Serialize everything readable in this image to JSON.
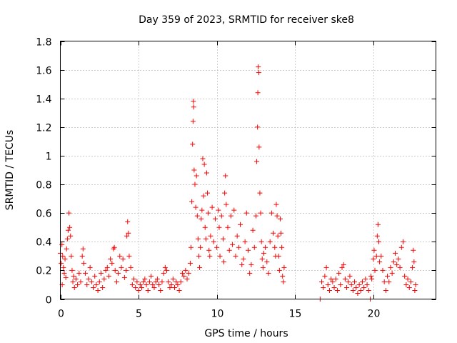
{
  "chart_data": {
    "type": "scatter",
    "title": "Day 359 of 2023, SRMTID for receiver ske8",
    "xlabel": "GPS time / hours",
    "ylabel": "SRMTID / TECUs",
    "xlim": [
      0,
      24
    ],
    "ylim": [
      0,
      1.8
    ],
    "x_ticks": [
      0,
      5,
      10,
      15,
      20
    ],
    "y_ticks": [
      0,
      0.2,
      0.4,
      0.6,
      0.8,
      1,
      1.2,
      1.4,
      1.6,
      1.8
    ],
    "x_tick_labels": [
      "0",
      "5",
      "10",
      "15",
      "20"
    ],
    "y_tick_labels": [
      "0",
      "0.2",
      "0.4",
      "0.6",
      "0.8",
      "1",
      "1.2",
      "1.4",
      "1.6",
      "1.8"
    ],
    "grid": true,
    "marker": "plus",
    "color": "#ff0000",
    "series": [
      {
        "name": "SRMTID",
        "points": [
          [
            0.0,
            0.32
          ],
          [
            0.05,
            0.25
          ],
          [
            0.1,
            0.38
          ],
          [
            0.12,
            0.1
          ],
          [
            0.15,
            0.3
          ],
          [
            0.2,
            0.22
          ],
          [
            0.25,
            0.18
          ],
          [
            0.3,
            0.28
          ],
          [
            0.35,
            0.15
          ],
          [
            0.4,
            0.35
          ],
          [
            0.45,
            0.42
          ],
          [
            0.5,
            0.48
          ],
          [
            0.55,
            0.6
          ],
          [
            0.6,
            0.5
          ],
          [
            0.65,
            0.44
          ],
          [
            0.7,
            0.3
          ],
          [
            0.75,
            0.2
          ],
          [
            0.8,
            0.12
          ],
          [
            0.85,
            0.16
          ],
          [
            0.9,
            0.08
          ],
          [
            1.0,
            0.14
          ],
          [
            1.1,
            0.1
          ],
          [
            1.2,
            0.18
          ],
          [
            1.3,
            0.12
          ],
          [
            1.4,
            0.3
          ],
          [
            1.45,
            0.35
          ],
          [
            1.5,
            0.25
          ],
          [
            1.6,
            0.18
          ],
          [
            1.7,
            0.1
          ],
          [
            1.8,
            0.14
          ],
          [
            1.9,
            0.22
          ],
          [
            2.0,
            0.12
          ],
          [
            2.1,
            0.08
          ],
          [
            2.2,
            0.16
          ],
          [
            2.3,
            0.1
          ],
          [
            2.4,
            0.06
          ],
          [
            2.5,
            0.12
          ],
          [
            2.6,
            0.18
          ],
          [
            2.7,
            0.08
          ],
          [
            2.8,
            0.14
          ],
          [
            2.9,
            0.2
          ],
          [
            3.0,
            0.22
          ],
          [
            3.1,
            0.16
          ],
          [
            3.2,
            0.28
          ],
          [
            3.3,
            0.25
          ],
          [
            3.4,
            0.35
          ],
          [
            3.45,
            0.36
          ],
          [
            3.5,
            0.2
          ],
          [
            3.6,
            0.12
          ],
          [
            3.7,
            0.18
          ],
          [
            3.8,
            0.3
          ],
          [
            3.9,
            0.22
          ],
          [
            4.0,
            0.28
          ],
          [
            4.1,
            0.15
          ],
          [
            4.2,
            0.2
          ],
          [
            4.25,
            0.44
          ],
          [
            4.3,
            0.54
          ],
          [
            4.35,
            0.46
          ],
          [
            4.4,
            0.3
          ],
          [
            4.5,
            0.22
          ],
          [
            4.6,
            0.1
          ],
          [
            4.7,
            0.14
          ],
          [
            4.8,
            0.08
          ],
          [
            4.9,
            0.12
          ],
          [
            5.0,
            0.06
          ],
          [
            5.1,
            0.1
          ],
          [
            5.2,
            0.08
          ],
          [
            5.3,
            0.12
          ],
          [
            5.4,
            0.14
          ],
          [
            5.5,
            0.1
          ],
          [
            5.6,
            0.06
          ],
          [
            5.7,
            0.12
          ],
          [
            5.8,
            0.16
          ],
          [
            5.9,
            0.1
          ],
          [
            6.0,
            0.08
          ],
          [
            6.1,
            0.12
          ],
          [
            6.2,
            0.14
          ],
          [
            6.3,
            0.1
          ],
          [
            6.4,
            0.06
          ],
          [
            6.5,
            0.12
          ],
          [
            6.6,
            0.18
          ],
          [
            6.7,
            0.22
          ],
          [
            6.8,
            0.2
          ],
          [
            6.9,
            0.12
          ],
          [
            7.0,
            0.08
          ],
          [
            7.1,
            0.1
          ],
          [
            7.2,
            0.14
          ],
          [
            7.3,
            0.08
          ],
          [
            7.4,
            0.12
          ],
          [
            7.5,
            0.1
          ],
          [
            7.6,
            0.06
          ],
          [
            7.7,
            0.12
          ],
          [
            7.8,
            0.18
          ],
          [
            7.9,
            0.16
          ],
          [
            8.0,
            0.2
          ],
          [
            8.1,
            0.14
          ],
          [
            8.2,
            0.18
          ],
          [
            8.3,
            0.25
          ],
          [
            8.35,
            0.36
          ],
          [
            8.4,
            0.68
          ],
          [
            8.45,
            1.08
          ],
          [
            8.48,
            1.24
          ],
          [
            8.5,
            1.38
          ],
          [
            8.52,
            1.34
          ],
          [
            8.55,
            0.9
          ],
          [
            8.6,
            0.8
          ],
          [
            8.65,
            0.64
          ],
          [
            8.7,
            0.86
          ],
          [
            8.75,
            0.58
          ],
          [
            8.8,
            0.42
          ],
          [
            8.85,
            0.3
          ],
          [
            8.9,
            0.22
          ],
          [
            8.95,
            0.36
          ],
          [
            9.0,
            0.56
          ],
          [
            9.05,
            0.62
          ],
          [
            9.1,
            0.98
          ],
          [
            9.15,
            0.72
          ],
          [
            9.2,
            0.94
          ],
          [
            9.25,
            0.5
          ],
          [
            9.3,
            0.42
          ],
          [
            9.35,
            0.88
          ],
          [
            9.4,
            0.74
          ],
          [
            9.45,
            0.6
          ],
          [
            9.5,
            0.34
          ],
          [
            9.55,
            0.3
          ],
          [
            9.6,
            0.44
          ],
          [
            9.7,
            0.64
          ],
          [
            9.8,
            0.4
          ],
          [
            9.9,
            0.56
          ],
          [
            10.0,
            0.36
          ],
          [
            10.1,
            0.62
          ],
          [
            10.15,
            0.5
          ],
          [
            10.2,
            0.3
          ],
          [
            10.3,
            0.58
          ],
          [
            10.4,
            0.42
          ],
          [
            10.45,
            0.26
          ],
          [
            10.5,
            0.74
          ],
          [
            10.55,
            0.86
          ],
          [
            10.6,
            0.66
          ],
          [
            10.7,
            0.5
          ],
          [
            10.8,
            0.34
          ],
          [
            10.9,
            0.58
          ],
          [
            11.0,
            0.38
          ],
          [
            11.1,
            0.62
          ],
          [
            11.2,
            0.3
          ],
          [
            11.3,
            0.44
          ],
          [
            11.4,
            0.36
          ],
          [
            11.5,
            0.52
          ],
          [
            11.6,
            0.24
          ],
          [
            11.7,
            0.28
          ],
          [
            11.8,
            0.4
          ],
          [
            11.9,
            0.6
          ],
          [
            12.0,
            0.34
          ],
          [
            12.1,
            0.18
          ],
          [
            12.2,
            0.24
          ],
          [
            12.3,
            0.48
          ],
          [
            12.4,
            0.36
          ],
          [
            12.5,
            0.58
          ],
          [
            12.55,
            0.96
          ],
          [
            12.6,
            1.2
          ],
          [
            12.62,
            1.44
          ],
          [
            12.65,
            1.62
          ],
          [
            12.68,
            1.58
          ],
          [
            12.7,
            1.06
          ],
          [
            12.75,
            0.74
          ],
          [
            12.8,
            0.6
          ],
          [
            12.85,
            0.4
          ],
          [
            12.9,
            0.28
          ],
          [
            12.95,
            0.22
          ],
          [
            13.0,
            0.32
          ],
          [
            13.1,
            0.36
          ],
          [
            13.2,
            0.26
          ],
          [
            13.3,
            0.18
          ],
          [
            13.4,
            0.4
          ],
          [
            13.5,
            0.6
          ],
          [
            13.6,
            0.46
          ],
          [
            13.7,
            0.36
          ],
          [
            13.75,
            0.3
          ],
          [
            13.8,
            0.66
          ],
          [
            13.85,
            0.58
          ],
          [
            13.9,
            0.44
          ],
          [
            13.95,
            0.3
          ],
          [
            14.0,
            0.2
          ],
          [
            14.05,
            0.56
          ],
          [
            14.1,
            0.46
          ],
          [
            14.15,
            0.36
          ],
          [
            14.2,
            0.16
          ],
          [
            14.25,
            0.12
          ],
          [
            14.3,
            0.22
          ],
          [
            16.6,
            0.0
          ],
          [
            16.7,
            0.12
          ],
          [
            16.8,
            0.08
          ],
          [
            16.9,
            0.16
          ],
          [
            17.0,
            0.22
          ],
          [
            17.1,
            0.1
          ],
          [
            17.2,
            0.06
          ],
          [
            17.3,
            0.14
          ],
          [
            17.4,
            0.12
          ],
          [
            17.5,
            0.08
          ],
          [
            17.6,
            0.14
          ],
          [
            17.7,
            0.06
          ],
          [
            17.8,
            0.18
          ],
          [
            17.9,
            0.1
          ],
          [
            18.0,
            0.22
          ],
          [
            18.1,
            0.24
          ],
          [
            18.2,
            0.14
          ],
          [
            18.3,
            0.08
          ],
          [
            18.4,
            0.12
          ],
          [
            18.5,
            0.16
          ],
          [
            18.6,
            0.1
          ],
          [
            18.7,
            0.06
          ],
          [
            18.8,
            0.12
          ],
          [
            18.9,
            0.08
          ],
          [
            19.0,
            0.04
          ],
          [
            19.1,
            0.1
          ],
          [
            19.2,
            0.06
          ],
          [
            19.3,
            0.12
          ],
          [
            19.4,
            0.08
          ],
          [
            19.5,
            0.14
          ],
          [
            19.6,
            0.1
          ],
          [
            19.7,
            0.06
          ],
          [
            19.8,
            0.0
          ],
          [
            19.85,
            0.16
          ],
          [
            19.9,
            0.14
          ],
          [
            20.0,
            0.28
          ],
          [
            20.05,
            0.34
          ],
          [
            20.1,
            0.2
          ],
          [
            20.2,
            0.3
          ],
          [
            20.25,
            0.44
          ],
          [
            20.3,
            0.52
          ],
          [
            20.35,
            0.4
          ],
          [
            20.4,
            0.26
          ],
          [
            20.5,
            0.3
          ],
          [
            20.6,
            0.2
          ],
          [
            20.7,
            0.12
          ],
          [
            20.8,
            0.06
          ],
          [
            20.9,
            0.16
          ],
          [
            21.0,
            0.12
          ],
          [
            21.1,
            0.22
          ],
          [
            21.2,
            0.18
          ],
          [
            21.3,
            0.26
          ],
          [
            21.4,
            0.32
          ],
          [
            21.5,
            0.24
          ],
          [
            21.6,
            0.28
          ],
          [
            21.7,
            0.22
          ],
          [
            21.8,
            0.36
          ],
          [
            21.9,
            0.4
          ],
          [
            22.0,
            0.16
          ],
          [
            22.1,
            0.1
          ],
          [
            22.2,
            0.14
          ],
          [
            22.3,
            0.08
          ],
          [
            22.4,
            0.12
          ],
          [
            22.5,
            0.22
          ],
          [
            22.55,
            0.34
          ],
          [
            22.6,
            0.26
          ],
          [
            22.65,
            0.06
          ],
          [
            22.7,
            0.1
          ]
        ]
      }
    ]
  }
}
